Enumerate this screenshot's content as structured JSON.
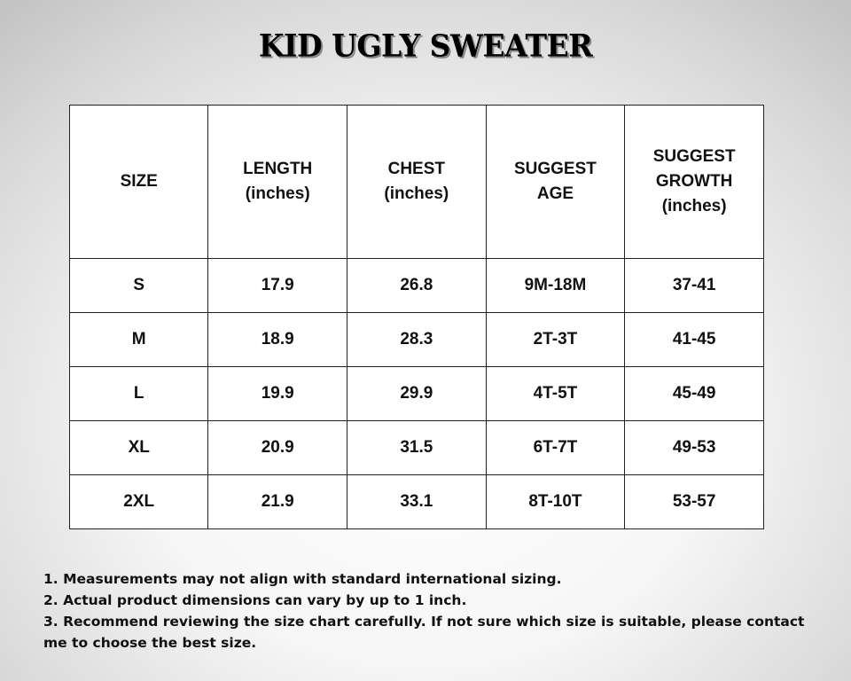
{
  "title": "KID UGLY SWEATER",
  "table": {
    "headers": [
      [
        "SIZE"
      ],
      [
        "LENGTH",
        "(inches)"
      ],
      [
        "CHEST",
        "(inches)"
      ],
      [
        "SUGGEST",
        "AGE"
      ],
      [
        "SUGGEST",
        "GROWTH",
        "(inches)"
      ]
    ],
    "rows": [
      [
        "S",
        "17.9",
        "26.8",
        "9M-18M",
        "37-41"
      ],
      [
        "M",
        "18.9",
        "28.3",
        "2T-3T",
        "41-45"
      ],
      [
        "L",
        "19.9",
        "29.9",
        "4T-5T",
        "45-49"
      ],
      [
        "XL",
        "20.9",
        "31.5",
        "6T-7T",
        "49-53"
      ],
      [
        "2XL",
        "21.9",
        "33.1",
        "8T-10T",
        "53-57"
      ]
    ]
  },
  "notes": [
    "1. Measurements may not align with standard international sizing.",
    "2. Actual product dimensions can vary by up to 1 inch.",
    "3. Recommend reviewing the size chart carefully. If not sure which size is suitable, please contact me to choose the best size."
  ]
}
